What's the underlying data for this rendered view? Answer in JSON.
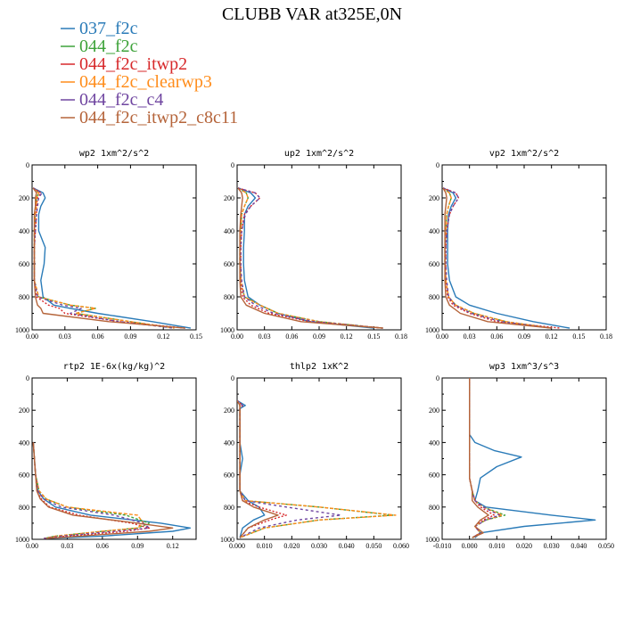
{
  "figure_title": "CLUBB VAR at325E,0N",
  "legend": [
    {
      "label": "037_f2c",
      "color": "#2a7bb8",
      "dash": "solid"
    },
    {
      "label": "044_f2c",
      "color": "#3ea33a",
      "dash": "solid"
    },
    {
      "label": "044_f2c_itwp2",
      "color": "#d7282a",
      "dash": "solid"
    },
    {
      "label": "044_f2c_clearwp3",
      "color": "#ff8c1a",
      "dash": "solid"
    },
    {
      "label": "044_f2c_c4",
      "color": "#6f45a0",
      "dash": "solid"
    },
    {
      "label": "044_f2c_itwp2_c8c11",
      "color": "#b5643a",
      "dash": "solid"
    }
  ],
  "chart_data": [
    {
      "type": "line",
      "title": "wp2  1xm^2/s^2",
      "xlim": [
        0,
        0.15
      ],
      "ylim": [
        1000,
        0
      ],
      "xticks": [
        "0.00",
        "0.03",
        "0.06",
        "0.09",
        "0.12",
        "0.15"
      ],
      "yticks": [
        "0",
        "200",
        "400",
        "600",
        "800",
        "1000"
      ],
      "y": [
        140,
        170,
        200,
        250,
        300,
        400,
        500,
        600,
        700,
        800,
        850,
        870,
        900,
        950,
        990
      ],
      "series": [
        {
          "name": "037_f2c",
          "values": [
            0.001,
            0.01,
            0.012,
            0.008,
            0.006,
            0.006,
            0.012,
            0.011,
            0.008,
            0.01,
            0.02,
            0.035,
            0.06,
            0.11,
            0.145
          ]
        },
        {
          "name": "044_f2c",
          "values": [
            0.001,
            0.006,
            0.004,
            0.004,
            0.003,
            0.002,
            0.002,
            0.002,
            0.002,
            0.006,
            0.035,
            0.058,
            0.04,
            0.09,
            0.13
          ]
        },
        {
          "name": "044_f2c_itwp2",
          "values": [
            0.001,
            0.008,
            0.005,
            0.004,
            0.004,
            0.003,
            0.002,
            0.002,
            0.002,
            0.004,
            0.015,
            0.025,
            0.03,
            0.08,
            0.14
          ]
        },
        {
          "name": "044_f2c_clearwp3",
          "values": [
            0.001,
            0.006,
            0.004,
            0.004,
            0.003,
            0.002,
            0.002,
            0.002,
            0.002,
            0.006,
            0.035,
            0.058,
            0.04,
            0.09,
            0.13
          ]
        },
        {
          "name": "044_f2c_c4",
          "values": [
            0.001,
            0.009,
            0.006,
            0.005,
            0.004,
            0.003,
            0.002,
            0.002,
            0.002,
            0.005,
            0.028,
            0.045,
            0.035,
            0.08,
            0.13
          ]
        },
        {
          "name": "044_f2c_itwp2_c8c11",
          "values": [
            0.001,
            0.004,
            0.003,
            0.003,
            0.002,
            0.002,
            0.002,
            0.002,
            0.002,
            0.003,
            0.005,
            0.008,
            0.01,
            0.07,
            0.14
          ]
        }
      ]
    },
    {
      "type": "line",
      "title": "up2  1xm^2/s^2",
      "xlim": [
        0,
        0.18
      ],
      "ylim": [
        1000,
        0
      ],
      "xticks": [
        "0.00",
        "0.03",
        "0.06",
        "0.09",
        "0.12",
        "0.15",
        "0.18"
      ],
      "yticks": [
        "0",
        "200",
        "400",
        "600",
        "800",
        "1000"
      ],
      "y": [
        140,
        170,
        200,
        250,
        300,
        400,
        500,
        600,
        700,
        800,
        850,
        900,
        950,
        990
      ],
      "series": [
        {
          "name": "037_f2c",
          "values": [
            0.001,
            0.015,
            0.02,
            0.012,
            0.008,
            0.008,
            0.007,
            0.007,
            0.008,
            0.012,
            0.025,
            0.045,
            0.08,
            0.15
          ]
        },
        {
          "name": "044_f2c",
          "values": [
            0.001,
            0.01,
            0.012,
            0.008,
            0.005,
            0.004,
            0.003,
            0.003,
            0.004,
            0.008,
            0.025,
            0.045,
            0.09,
            0.16
          ]
        },
        {
          "name": "044_f2c_itwp2",
          "values": [
            0.001,
            0.02,
            0.025,
            0.015,
            0.008,
            0.005,
            0.004,
            0.004,
            0.004,
            0.006,
            0.015,
            0.035,
            0.08,
            0.16
          ]
        },
        {
          "name": "044_f2c_clearwp3",
          "values": [
            0.001,
            0.01,
            0.012,
            0.008,
            0.005,
            0.004,
            0.003,
            0.003,
            0.004,
            0.008,
            0.025,
            0.045,
            0.09,
            0.16
          ]
        },
        {
          "name": "044_f2c_c4",
          "values": [
            0.001,
            0.02,
            0.025,
            0.015,
            0.009,
            0.005,
            0.004,
            0.004,
            0.005,
            0.008,
            0.02,
            0.04,
            0.085,
            0.16
          ]
        },
        {
          "name": "044_f2c_itwp2_c8c11",
          "values": [
            0.001,
            0.005,
            0.006,
            0.005,
            0.004,
            0.003,
            0.003,
            0.003,
            0.003,
            0.004,
            0.01,
            0.03,
            0.07,
            0.16
          ]
        }
      ]
    },
    {
      "type": "line",
      "title": "vp2  1xm^2/s^2",
      "xlim": [
        0,
        0.18
      ],
      "ylim": [
        1000,
        0
      ],
      "xticks": [
        "0.00",
        "0.03",
        "0.06",
        "0.09",
        "0.12",
        "0.15",
        "0.18"
      ],
      "yticks": [
        "0",
        "200",
        "400",
        "600",
        "800",
        "1000"
      ],
      "y": [
        140,
        170,
        200,
        250,
        300,
        400,
        500,
        600,
        700,
        800,
        850,
        900,
        950,
        990
      ],
      "series": [
        {
          "name": "037_f2c",
          "values": [
            0.001,
            0.012,
            0.015,
            0.01,
            0.007,
            0.006,
            0.006,
            0.006,
            0.008,
            0.015,
            0.03,
            0.06,
            0.1,
            0.14
          ]
        },
        {
          "name": "044_f2c",
          "values": [
            0.001,
            0.008,
            0.01,
            0.007,
            0.005,
            0.004,
            0.003,
            0.003,
            0.004,
            0.007,
            0.015,
            0.035,
            0.07,
            0.12
          ]
        },
        {
          "name": "044_f2c_itwp2",
          "values": [
            0.001,
            0.015,
            0.018,
            0.012,
            0.008,
            0.005,
            0.004,
            0.004,
            0.004,
            0.006,
            0.012,
            0.03,
            0.06,
            0.13
          ]
        },
        {
          "name": "044_f2c_clearwp3",
          "values": [
            0.001,
            0.008,
            0.01,
            0.007,
            0.005,
            0.004,
            0.003,
            0.003,
            0.004,
            0.007,
            0.015,
            0.035,
            0.07,
            0.12
          ]
        },
        {
          "name": "044_f2c_c4",
          "values": [
            0.001,
            0.015,
            0.018,
            0.012,
            0.008,
            0.005,
            0.004,
            0.004,
            0.005,
            0.007,
            0.014,
            0.032,
            0.065,
            0.12
          ]
        },
        {
          "name": "044_f2c_itwp2_c8c11",
          "values": [
            0.001,
            0.004,
            0.005,
            0.004,
            0.003,
            0.003,
            0.003,
            0.003,
            0.003,
            0.004,
            0.008,
            0.02,
            0.05,
            0.12
          ]
        }
      ]
    },
    {
      "type": "line",
      "title": "rtp2  1E-6x(kg/kg)^2",
      "xlim": [
        0,
        0.14
      ],
      "ylim": [
        1000,
        0
      ],
      "xticks": [
        "0.00",
        "0.03",
        "0.06",
        "0.09",
        "0.12"
      ],
      "yticks": [
        "0",
        "200",
        "400",
        "600",
        "800",
        "1000"
      ],
      "y": [
        400,
        500,
        600,
        700,
        750,
        800,
        850,
        900,
        930,
        950,
        980,
        995
      ],
      "series": [
        {
          "name": "037_f2c",
          "values": [
            0.001,
            0.002,
            0.003,
            0.005,
            0.01,
            0.02,
            0.05,
            0.11,
            0.135,
            0.12,
            0.06,
            0.012
          ]
        },
        {
          "name": "044_f2c",
          "values": [
            0.001,
            0.002,
            0.003,
            0.006,
            0.012,
            0.03,
            0.08,
            0.1,
            0.09,
            0.06,
            0.02,
            0.01
          ]
        },
        {
          "name": "044_f2c_itwp2",
          "values": [
            0.001,
            0.002,
            0.003,
            0.004,
            0.008,
            0.015,
            0.04,
            0.085,
            0.1,
            0.08,
            0.03,
            0.01
          ]
        },
        {
          "name": "044_f2c_clearwp3",
          "values": [
            0.001,
            0.002,
            0.003,
            0.006,
            0.012,
            0.03,
            0.09,
            0.095,
            0.09,
            0.06,
            0.02,
            0.01
          ]
        },
        {
          "name": "044_f2c_c4",
          "values": [
            0.001,
            0.002,
            0.003,
            0.005,
            0.01,
            0.025,
            0.07,
            0.095,
            0.1,
            0.07,
            0.025,
            0.01
          ]
        },
        {
          "name": "044_f2c_itwp2_c8c11",
          "values": [
            0.001,
            0.002,
            0.003,
            0.004,
            0.007,
            0.014,
            0.035,
            0.09,
            0.12,
            0.1,
            0.04,
            0.012
          ]
        }
      ]
    },
    {
      "type": "line",
      "title": "thlp2  1xK^2",
      "xlim": [
        0,
        0.06
      ],
      "ylim": [
        1000,
        0
      ],
      "xticks": [
        "0.000",
        "0.010",
        "0.020",
        "0.030",
        "0.040",
        "0.050",
        "0.060"
      ],
      "yticks": [
        "0",
        "200",
        "400",
        "600",
        "800",
        "1000"
      ],
      "y": [
        140,
        170,
        190,
        230,
        400,
        500,
        600,
        700,
        760,
        800,
        850,
        880,
        930,
        990
      ],
      "series": [
        {
          "name": "037_f2c",
          "values": [
            0.0,
            0.003,
            0.001,
            0.001,
            0.001,
            0.002,
            0.001,
            0.001,
            0.004,
            0.008,
            0.01,
            0.006,
            0.002,
            0.001
          ]
        },
        {
          "name": "044_f2c",
          "values": [
            0.0,
            0.001,
            0.001,
            0.001,
            0.001,
            0.001,
            0.001,
            0.001,
            0.003,
            0.03,
            0.057,
            0.03,
            0.01,
            0.001
          ]
        },
        {
          "name": "044_f2c_itwp2",
          "values": [
            0.0,
            0.002,
            0.001,
            0.001,
            0.001,
            0.001,
            0.001,
            0.001,
            0.002,
            0.008,
            0.018,
            0.012,
            0.004,
            0.001
          ]
        },
        {
          "name": "044_f2c_clearwp3",
          "values": [
            0.0,
            0.001,
            0.001,
            0.001,
            0.001,
            0.001,
            0.001,
            0.001,
            0.003,
            0.03,
            0.058,
            0.03,
            0.01,
            0.001
          ]
        },
        {
          "name": "044_f2c_c4",
          "values": [
            0.0,
            0.002,
            0.001,
            0.001,
            0.001,
            0.001,
            0.001,
            0.001,
            0.003,
            0.018,
            0.038,
            0.022,
            0.008,
            0.001
          ]
        },
        {
          "name": "044_f2c_itwp2_c8c11",
          "values": [
            0.0,
            0.001,
            0.001,
            0.001,
            0.001,
            0.001,
            0.001,
            0.001,
            0.002,
            0.006,
            0.015,
            0.01,
            0.004,
            0.001
          ]
        }
      ]
    },
    {
      "type": "line",
      "title": "wp3  1xm^3/s^3",
      "xlim": [
        -0.01,
        0.05
      ],
      "ylim": [
        1000,
        0
      ],
      "xticks": [
        "-0.010",
        "0.000",
        "0.010",
        "0.020",
        "0.030",
        "0.040",
        "0.050"
      ],
      "yticks": [
        "0",
        "200",
        "400",
        "600",
        "800",
        "1000"
      ],
      "y": [
        0,
        200,
        300,
        350,
        400,
        450,
        490,
        550,
        620,
        700,
        760,
        800,
        850,
        880,
        920,
        960,
        990
      ],
      "series": [
        {
          "name": "037_f2c",
          "values": [
            0.0,
            0.0,
            0.0,
            0.0,
            0.002,
            0.009,
            0.019,
            0.01,
            0.004,
            0.003,
            0.002,
            0.006,
            0.03,
            0.046,
            0.02,
            0.004,
            0.002
          ]
        },
        {
          "name": "044_f2c",
          "values": [
            0.0,
            0.0,
            0.0,
            0.0,
            0.0,
            0.0,
            0.0,
            0.0,
            0.0,
            0.001,
            0.002,
            0.005,
            0.013,
            0.006,
            0.002,
            0.004,
            0.001
          ]
        },
        {
          "name": "044_f2c_itwp2",
          "values": [
            0.0,
            0.0,
            0.0,
            0.0,
            0.0,
            0.0,
            0.0,
            0.0,
            0.0,
            0.001,
            0.002,
            0.004,
            0.009,
            0.005,
            0.002,
            0.004,
            0.001
          ]
        },
        {
          "name": "044_f2c_clearwp3",
          "values": [
            0.0,
            0.0,
            0.0,
            0.0,
            0.0,
            0.0,
            0.0,
            0.0,
            0.0,
            0.001,
            0.002,
            0.005,
            0.012,
            0.006,
            0.002,
            0.004,
            0.001
          ]
        },
        {
          "name": "044_f2c_c4",
          "values": [
            0.0,
            0.0,
            0.0,
            0.0,
            0.0,
            0.0,
            0.0,
            0.0,
            0.0,
            0.001,
            0.002,
            0.005,
            0.011,
            0.006,
            0.002,
            0.004,
            0.001
          ]
        },
        {
          "name": "044_f2c_itwp2_c8c11",
          "values": [
            0.0,
            0.0,
            0.0,
            0.0,
            0.0,
            0.0,
            0.0,
            0.0,
            0.0,
            0.001,
            0.001,
            0.003,
            0.007,
            0.004,
            0.002,
            0.005,
            0.001
          ]
        }
      ]
    }
  ]
}
